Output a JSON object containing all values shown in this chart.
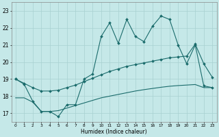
{
  "title": "",
  "xlabel": "Humidex (Indice chaleur)",
  "background_color": "#c5e8e8",
  "grid_color": "#a8d0d0",
  "line_color": "#1a6b6b",
  "xlim": [
    -0.5,
    23.5
  ],
  "ylim": [
    16.5,
    23.5
  ],
  "xticks": [
    0,
    1,
    2,
    3,
    4,
    5,
    6,
    7,
    8,
    9,
    10,
    11,
    12,
    13,
    14,
    15,
    16,
    17,
    18,
    19,
    20,
    21,
    22,
    23
  ],
  "yticks": [
    17,
    18,
    19,
    20,
    21,
    22,
    23
  ],
  "line1_x": [
    0,
    1,
    2,
    3,
    4,
    5,
    6,
    7,
    8,
    9,
    10,
    11,
    12,
    13,
    14,
    15,
    16,
    17,
    18,
    19,
    20,
    21,
    22,
    23
  ],
  "line1_y": [
    19.0,
    18.7,
    17.7,
    17.1,
    17.1,
    16.8,
    17.5,
    17.5,
    19.0,
    19.3,
    21.5,
    22.3,
    21.1,
    22.5,
    21.5,
    21.2,
    22.1,
    22.7,
    22.5,
    21.0,
    19.9,
    21.0,
    18.6,
    18.5
  ],
  "line2_x": [
    0,
    1,
    2,
    3,
    4,
    5,
    6,
    7,
    8,
    9,
    10,
    11,
    12,
    13,
    14,
    15,
    16,
    17,
    18,
    19,
    20,
    21,
    22,
    23
  ],
  "line2_y": [
    19.0,
    18.75,
    18.5,
    18.3,
    18.3,
    18.35,
    18.5,
    18.65,
    18.85,
    19.05,
    19.25,
    19.45,
    19.6,
    19.75,
    19.85,
    19.95,
    20.05,
    20.15,
    20.25,
    20.3,
    20.35,
    21.05,
    19.9,
    19.1
  ],
  "line3_x": [
    0,
    1,
    2,
    3,
    4,
    5,
    6,
    7,
    8,
    9,
    10,
    11,
    12,
    13,
    14,
    15,
    16,
    17,
    18,
    19,
    20,
    21,
    22,
    23
  ],
  "line3_y": [
    17.9,
    17.9,
    17.65,
    17.1,
    17.1,
    17.15,
    17.3,
    17.45,
    17.6,
    17.75,
    17.9,
    18.0,
    18.1,
    18.2,
    18.3,
    18.38,
    18.45,
    18.52,
    18.58,
    18.62,
    18.65,
    18.68,
    18.5,
    18.5
  ]
}
